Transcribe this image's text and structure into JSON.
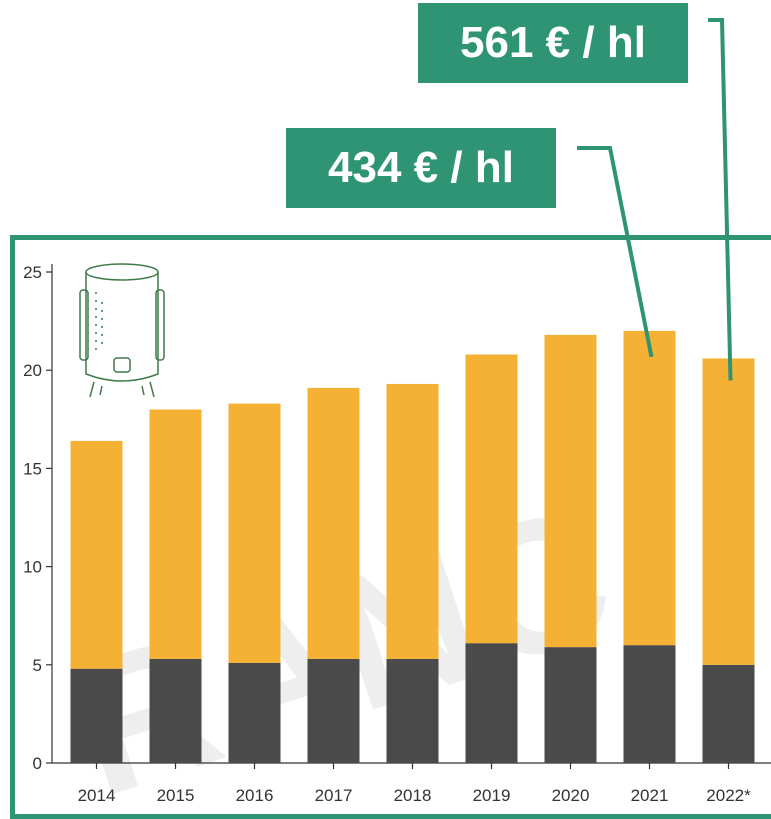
{
  "callouts": {
    "label_2022": "561 € / hl",
    "label_2021": "434 € / hl"
  },
  "icons": {
    "chart_illustration": "wine-vat-icon"
  },
  "colors": {
    "accent": "#2e9474",
    "upper_segment": "#f5b133",
    "lower_segment": "#4a4a4a",
    "watermark": "#cccccc"
  },
  "chart_data": {
    "type": "bar",
    "stacked": true,
    "categories": [
      "2014",
      "2015",
      "2016",
      "2017",
      "2018",
      "2019",
      "2020",
      "2021",
      "2022*"
    ],
    "series": [
      {
        "values": [
          4.8,
          5.3,
          5.1,
          5.3,
          5.3,
          6.1,
          5.9,
          6.0,
          5.0
        ]
      },
      {
        "values": [
          11.6,
          12.7,
          13.2,
          13.8,
          14.0,
          14.7,
          15.9,
          16.0,
          15.6
        ]
      }
    ],
    "yticks": [
      0,
      5,
      10,
      15,
      20,
      25
    ],
    "ylim": [
      0,
      25
    ],
    "grid": false,
    "legend": "none",
    "title": "",
    "xlabel": "",
    "ylabel": ""
  }
}
